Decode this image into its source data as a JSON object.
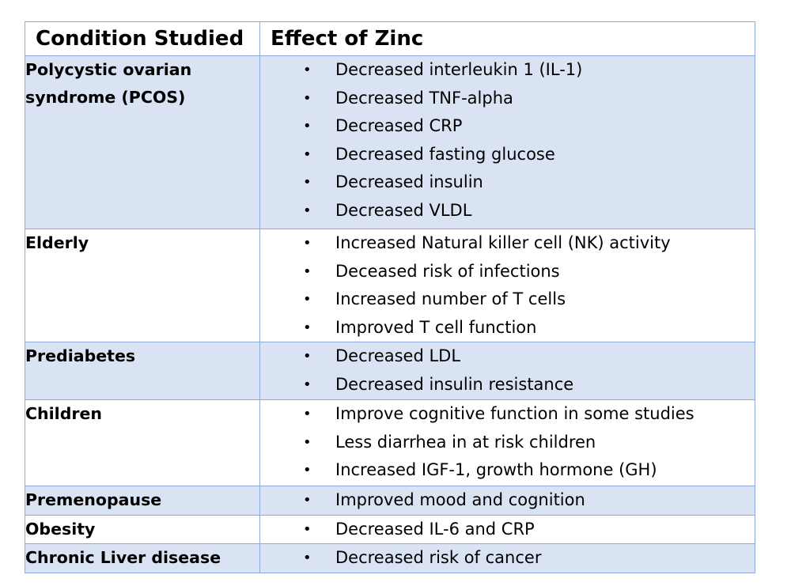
{
  "header": {
    "condition_label": "Condition Studied",
    "effect_label": "Effect of  Zinc"
  },
  "rows": [
    {
      "condition_line1": "Polycystic ovarian",
      "condition_line2": "syndrome (PCOS)",
      "effects": [
        "Decreased interleukin 1 (IL-1)",
        "Decreased TNF-alpha",
        "Decreased CRP",
        "Decreased fasting glucose",
        "Decreased insulin",
        "Decreased  VLDL"
      ]
    },
    {
      "condition_line1": "Elderly",
      "effects": [
        "Increased  Natural killer cell (NK) activity",
        "Deceased risk of  infections",
        "Increased number of  T cells",
        "Improved T cell function"
      ]
    },
    {
      "condition_line1": "Prediabetes",
      "effects": [
        "Decreased LDL",
        "Decreased insulin resistance"
      ]
    },
    {
      "condition_line1": "Children",
      "effects": [
        "Improve cognitive function  in  some studies",
        "Less diarrhea  in at  risk children",
        "Increased IGF-1, growth hormone (GH)"
      ]
    },
    {
      "condition_line1": "Premenopause",
      "effects": [
        "Improved mood and cognition"
      ]
    },
    {
      "condition_line1": "Obesity",
      "effects": [
        "Decreased IL-6 and CRP"
      ]
    },
    {
      "condition_line1": "Chronic Liver disease",
      "effects": [
        "Decreased risk of cancer"
      ]
    }
  ],
  "bullet_glyph": "•",
  "colors": {
    "border": "#8eaadb",
    "shade": "#dae3f3"
  }
}
